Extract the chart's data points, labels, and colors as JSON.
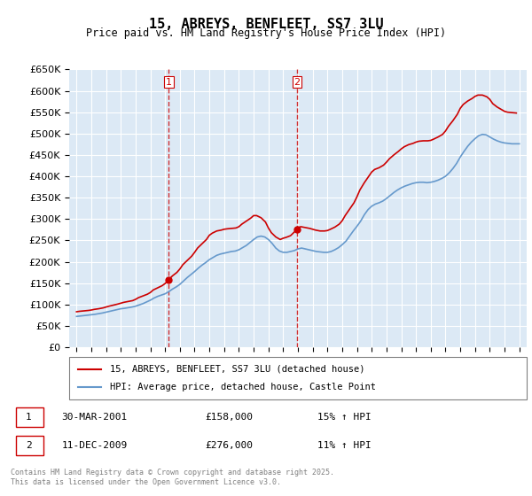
{
  "title": "15, ABREYS, BENFLEET, SS7 3LU",
  "subtitle": "Price paid vs. HM Land Registry's House Price Index (HPI)",
  "legend_line1": "15, ABREYS, BENFLEET, SS7 3LU (detached house)",
  "legend_line2": "HPI: Average price, detached house, Castle Point",
  "footnote": "Contains HM Land Registry data © Crown copyright and database right 2025.\nThis data is licensed under the Open Government Licence v3.0.",
  "purchase1_label": "1",
  "purchase1_date": "30-MAR-2001",
  "purchase1_price": "£158,000",
  "purchase1_hpi": "15% ↑ HPI",
  "purchase1_year": 2001.25,
  "purchase2_label": "2",
  "purchase2_date": "11-DEC-2009",
  "purchase2_price": "£276,000",
  "purchase2_hpi": "11% ↑ HPI",
  "purchase2_year": 2009.95,
  "ylim": [
    0,
    650000
  ],
  "yticks": [
    0,
    50000,
    100000,
    150000,
    200000,
    250000,
    300000,
    350000,
    400000,
    450000,
    500000,
    550000,
    600000,
    650000
  ],
  "xlim": [
    1994.5,
    2025.5
  ],
  "plot_bg": "#dce9f5",
  "grid_color": "#ffffff",
  "red_color": "#cc0000",
  "blue_color": "#6699cc",
  "marker_color": "#cc0000",
  "purchase1_price_val": 158000,
  "purchase2_price_val": 276000,
  "hpi_years": [
    1995,
    1995.25,
    1995.5,
    1995.75,
    1996,
    1996.25,
    1996.5,
    1996.75,
    1997,
    1997.25,
    1997.5,
    1997.75,
    1998,
    1998.25,
    1998.5,
    1998.75,
    1999,
    1999.25,
    1999.5,
    1999.75,
    2000,
    2000.25,
    2000.5,
    2000.75,
    2001,
    2001.25,
    2001.5,
    2001.75,
    2002,
    2002.25,
    2002.5,
    2002.75,
    2003,
    2003.25,
    2003.5,
    2003.75,
    2004,
    2004.25,
    2004.5,
    2004.75,
    2005,
    2005.25,
    2005.5,
    2005.75,
    2006,
    2006.25,
    2006.5,
    2006.75,
    2007,
    2007.25,
    2007.5,
    2007.75,
    2008,
    2008.25,
    2008.5,
    2008.75,
    2009,
    2009.25,
    2009.5,
    2009.75,
    2010,
    2010.25,
    2010.5,
    2010.75,
    2011,
    2011.25,
    2011.5,
    2011.75,
    2012,
    2012.25,
    2012.5,
    2012.75,
    2013,
    2013.25,
    2013.5,
    2013.75,
    2014,
    2014.25,
    2014.5,
    2014.75,
    2015,
    2015.25,
    2015.5,
    2015.75,
    2016,
    2016.25,
    2016.5,
    2016.75,
    2017,
    2017.25,
    2017.5,
    2017.75,
    2018,
    2018.25,
    2018.5,
    2018.75,
    2019,
    2019.25,
    2019.5,
    2019.75,
    2020,
    2020.25,
    2020.5,
    2020.75,
    2021,
    2021.25,
    2021.5,
    2021.75,
    2022,
    2022.25,
    2022.5,
    2022.75,
    2023,
    2023.25,
    2023.5,
    2023.75,
    2024,
    2024.25,
    2024.5,
    2024.75,
    2025
  ],
  "hpi_values": [
    72000,
    73000,
    74000,
    75000,
    76000,
    77000,
    78500,
    80000,
    82000,
    84000,
    86000,
    88000,
    90000,
    91000,
    92500,
    94000,
    96000,
    99000,
    102000,
    106000,
    110000,
    115000,
    119000,
    122000,
    125000,
    130000,
    136000,
    141000,
    147000,
    155000,
    163000,
    170000,
    177000,
    185000,
    192000,
    198000,
    205000,
    210000,
    215000,
    218000,
    220000,
    222000,
    224000,
    225000,
    228000,
    233000,
    238000,
    245000,
    252000,
    258000,
    260000,
    258000,
    252000,
    243000,
    232000,
    225000,
    222000,
    222000,
    224000,
    226000,
    230000,
    232000,
    230000,
    228000,
    226000,
    224000,
    223000,
    222000,
    222000,
    224000,
    228000,
    233000,
    240000,
    248000,
    260000,
    272000,
    283000,
    295000,
    310000,
    322000,
    330000,
    335000,
    338000,
    342000,
    348000,
    355000,
    362000,
    368000,
    373000,
    377000,
    380000,
    383000,
    385000,
    386000,
    386000,
    385000,
    386000,
    388000,
    391000,
    395000,
    400000,
    408000,
    418000,
    430000,
    445000,
    458000,
    470000,
    480000,
    488000,
    495000,
    498000,
    497000,
    492000,
    487000,
    483000,
    480000,
    478000,
    477000,
    476000,
    476000,
    476000
  ],
  "price_years": [
    1995,
    1995.2,
    1995.5,
    1995.8,
    1996,
    1996.2,
    1996.5,
    1996.8,
    1997,
    1997.2,
    1997.5,
    1997.8,
    1998,
    1998.2,
    1998.5,
    1998.8,
    1999,
    1999.2,
    1999.5,
    1999.8,
    2000,
    2000.2,
    2000.5,
    2000.8,
    2001,
    2001.25,
    2001.5,
    2001.8,
    2002,
    2002.2,
    2002.5,
    2002.8,
    2003,
    2003.2,
    2003.5,
    2003.8,
    2004,
    2004.2,
    2004.5,
    2004.8,
    2005,
    2005.2,
    2005.5,
    2005.8,
    2006,
    2006.2,
    2006.5,
    2006.8,
    2007,
    2007.2,
    2007.5,
    2007.8,
    2008,
    2008.2,
    2008.5,
    2008.8,
    2009,
    2009.2,
    2009.5,
    2009.95,
    2010,
    2010.2,
    2010.5,
    2010.8,
    2011,
    2011.2,
    2011.5,
    2011.8,
    2012,
    2012.2,
    2012.5,
    2012.8,
    2013,
    2013.2,
    2013.5,
    2013.8,
    2014,
    2014.2,
    2014.5,
    2014.8,
    2015,
    2015.2,
    2015.5,
    2015.8,
    2016,
    2016.2,
    2016.5,
    2016.8,
    2017,
    2017.2,
    2017.5,
    2017.8,
    2018,
    2018.2,
    2018.5,
    2018.8,
    2019,
    2019.2,
    2019.5,
    2019.8,
    2020,
    2020.2,
    2020.5,
    2020.8,
    2021,
    2021.2,
    2021.5,
    2021.8,
    2022,
    2022.2,
    2022.5,
    2022.8,
    2023,
    2023.2,
    2023.5,
    2023.8,
    2024,
    2024.2,
    2024.5,
    2024.8
  ],
  "price_values": [
    83000,
    84000,
    85000,
    86000,
    87000,
    88500,
    90000,
    92000,
    94000,
    96000,
    98500,
    101000,
    103000,
    105000,
    107000,
    109000,
    112000,
    116000,
    120000,
    124000,
    128000,
    134000,
    139000,
    144000,
    149000,
    158000,
    167000,
    175000,
    183000,
    193000,
    203000,
    213000,
    222000,
    232000,
    242000,
    252000,
    262000,
    267000,
    272000,
    274000,
    276000,
    277000,
    278000,
    279000,
    282000,
    288000,
    295000,
    302000,
    308000,
    308000,
    303000,
    293000,
    279000,
    268000,
    258000,
    252000,
    255000,
    257000,
    261000,
    276000,
    280000,
    282000,
    280000,
    278000,
    276000,
    274000,
    272000,
    272000,
    273000,
    276000,
    281000,
    288000,
    296000,
    308000,
    323000,
    338000,
    352000,
    368000,
    385000,
    400000,
    410000,
    416000,
    420000,
    426000,
    433000,
    441000,
    450000,
    458000,
    464000,
    469000,
    474000,
    477000,
    480000,
    482000,
    483000,
    483000,
    484000,
    487000,
    492000,
    498000,
    506000,
    517000,
    530000,
    545000,
    559000,
    568000,
    576000,
    582000,
    587000,
    590000,
    590000,
    586000,
    580000,
    570000,
    562000,
    556000,
    552000,
    550000,
    549000,
    548000
  ]
}
